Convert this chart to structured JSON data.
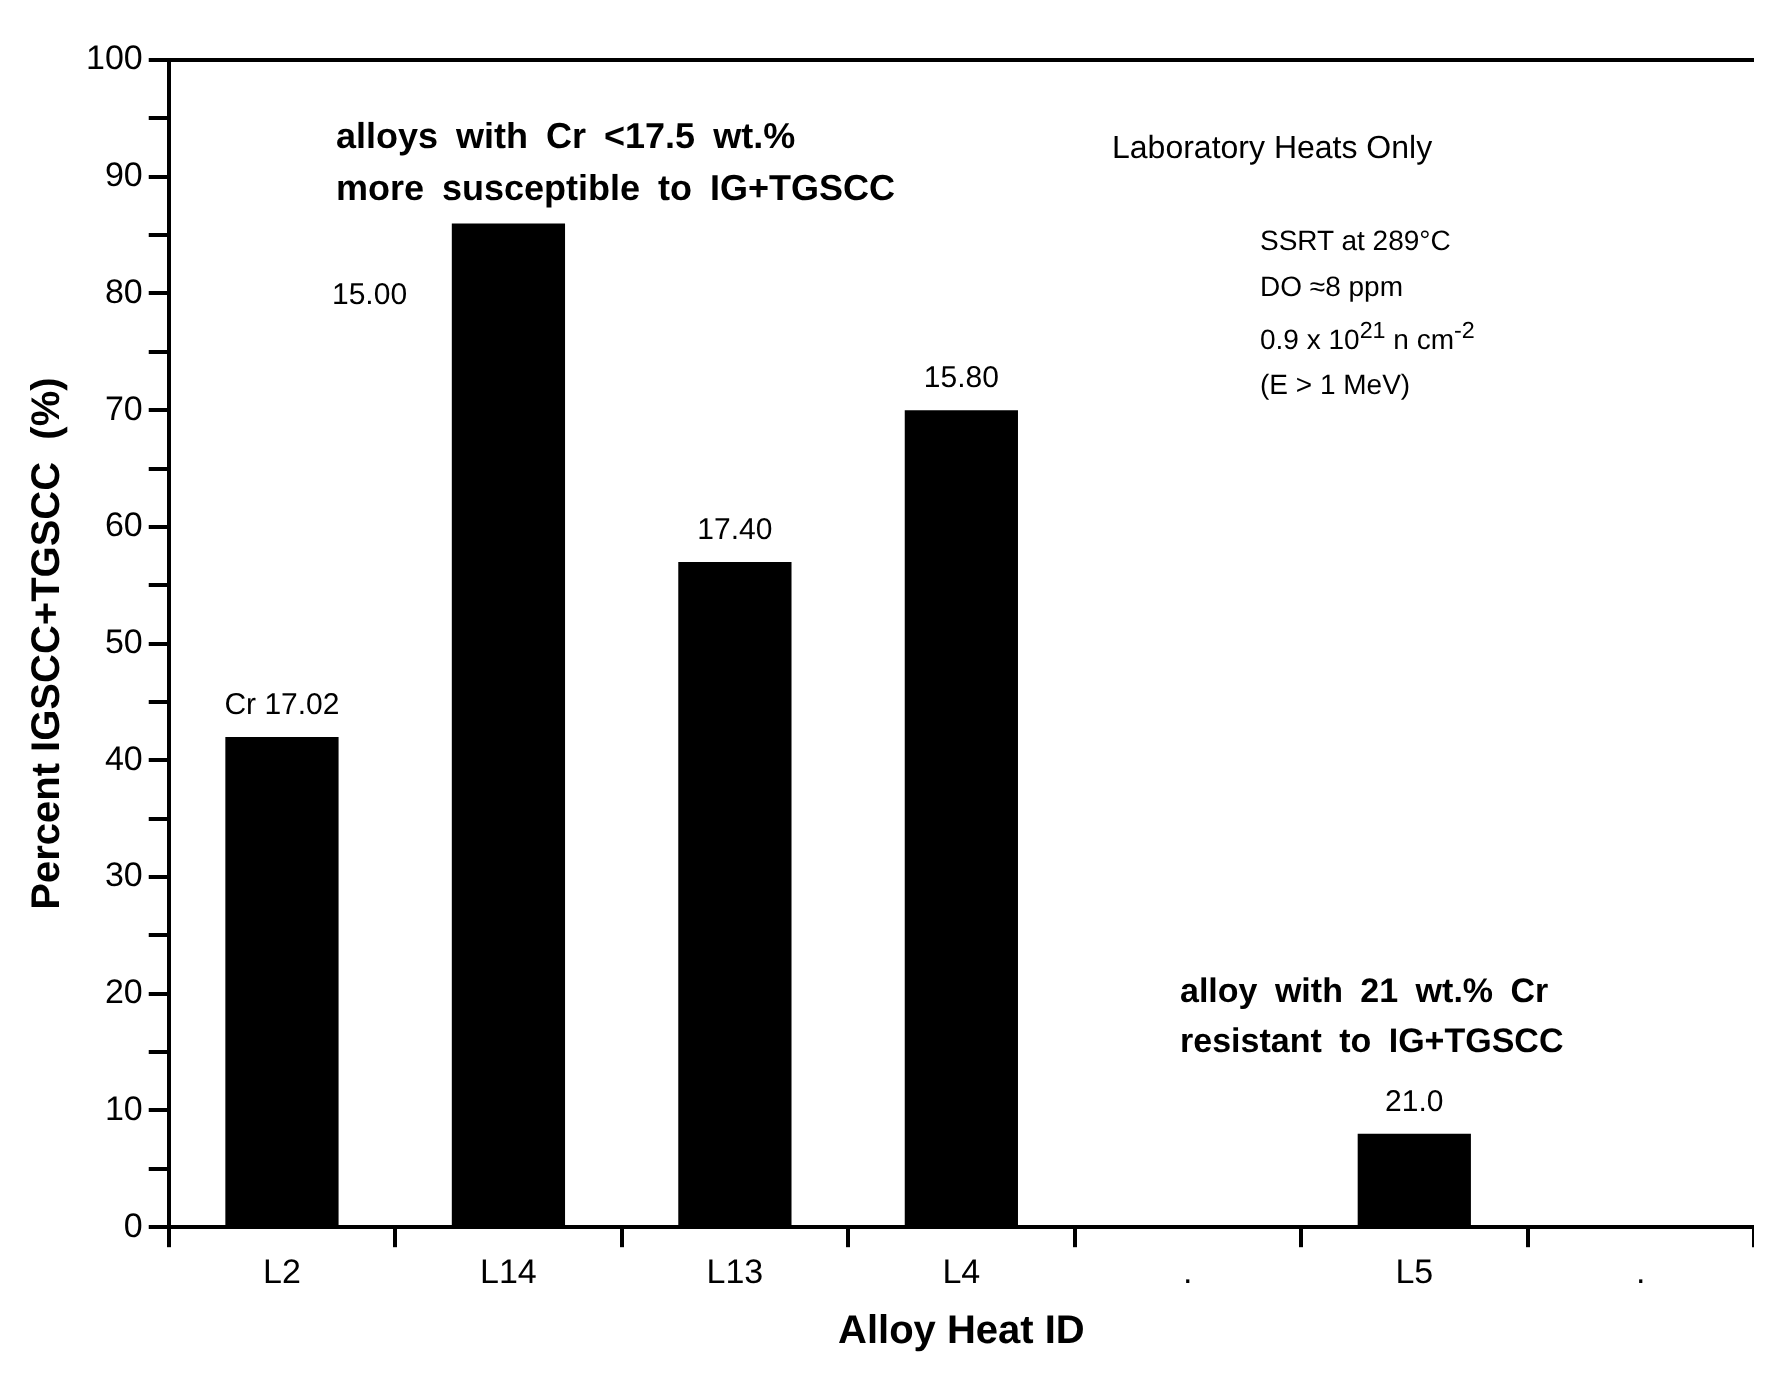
{
  "chart_data": {
    "type": "bar",
    "xlabel": "Alloy Heat ID",
    "ylabel": "Percent IGSCC+TGSCC  (%)",
    "categories": [
      "L2",
      "L14",
      "L13",
      "L4",
      ".",
      "L5",
      "."
    ],
    "values": [
      42,
      86,
      57,
      70,
      null,
      8,
      null
    ],
    "color": "#000000",
    "ylim": [
      0,
      100
    ],
    "yticks": [
      0,
      {
        "value": 5,
        "label": null
      },
      10,
      {
        "value": 15,
        "label": null
      },
      20,
      {
        "value": 25,
        "label": null
      },
      30,
      {
        "value": 35,
        "label": null
      },
      40,
      {
        "value": 45,
        "label": null
      },
      50,
      {
        "value": 55,
        "label": null
      },
      60,
      {
        "value": 65,
        "label": null
      },
      70,
      {
        "value": 75,
        "label": null
      },
      80,
      {
        "value": 85,
        "label": null
      },
      90,
      {
        "value": 95,
        "label": null
      },
      100
    ],
    "grid": false,
    "annotations": [
      "alloys with Cr <17.5 wt.%",
      "more susceptible to IG+TGSCC",
      "Laboratory Heats Only",
      "SSRT at 289°C",
      "DO ≈8 ppm",
      "0.9 x 10$^{21}$ n cm$^{-2}$",
      "(E > 1 MeV)",
      "alloy with 21 wt.% Cr",
      "resistant to IG+TGSCC",
      "15.00",
      {
        "text": "Cr 17.02",
        "x": "L2",
        "y": 42
      },
      {
        "text": "17.40",
        "x": "L13",
        "y": 57
      },
      {
        "text": "15.80",
        "x": "L4",
        "y": 70
      },
      {
        "text": "21.0",
        "x": "L5",
        "y": 8
      }
    ]
  }
}
